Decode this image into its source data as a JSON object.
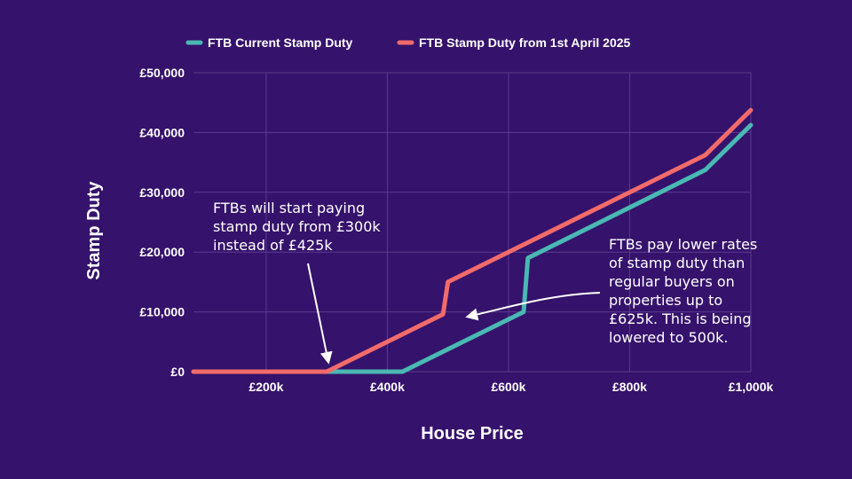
{
  "chart_data": {
    "type": "line",
    "title": "",
    "xlabel": "House Price",
    "ylabel": "Stamp Duty",
    "xlim": [
      80000,
      1000000
    ],
    "ylim": [
      0,
      50000
    ],
    "grid": true,
    "legend_position": "top-center",
    "x_ticks": [
      200000,
      400000,
      600000,
      800000,
      1000000
    ],
    "x_tick_labels": [
      "£200k",
      "£400k",
      "£600k",
      "£800k",
      "£1,000k"
    ],
    "y_ticks": [
      0,
      10000,
      20000,
      30000,
      40000,
      50000
    ],
    "y_tick_labels": [
      "£0",
      "£10,000",
      "£20,000",
      "£30,000",
      "£40,000",
      "£50,000"
    ],
    "series": [
      {
        "name": "FTB Current Stamp Duty",
        "color": "#4ab8b3",
        "points": [
          [
            80000,
            0
          ],
          [
            425000,
            0
          ],
          [
            625000,
            10000
          ],
          [
            632000,
            19000
          ],
          [
            925000,
            33750
          ],
          [
            1000000,
            41250
          ]
        ]
      },
      {
        "name": "FTB Stamp Duty from 1st April 2025",
        "color": "#f26b6b",
        "points": [
          [
            80000,
            0
          ],
          [
            300000,
            0
          ],
          [
            492000,
            9600
          ],
          [
            500000,
            15000
          ],
          [
            925000,
            36250
          ],
          [
            1000000,
            43750
          ]
        ]
      }
    ],
    "annotations": [
      {
        "text": "FTBs will start paying\nstamp duty from £300k\ninstead of £425k"
      },
      {
        "text": "FTBs pay lower rates\nof stamp duty than\nregular buyers on\nproperties up to\n£625k. This is being\nlowered to 500k."
      }
    ]
  }
}
